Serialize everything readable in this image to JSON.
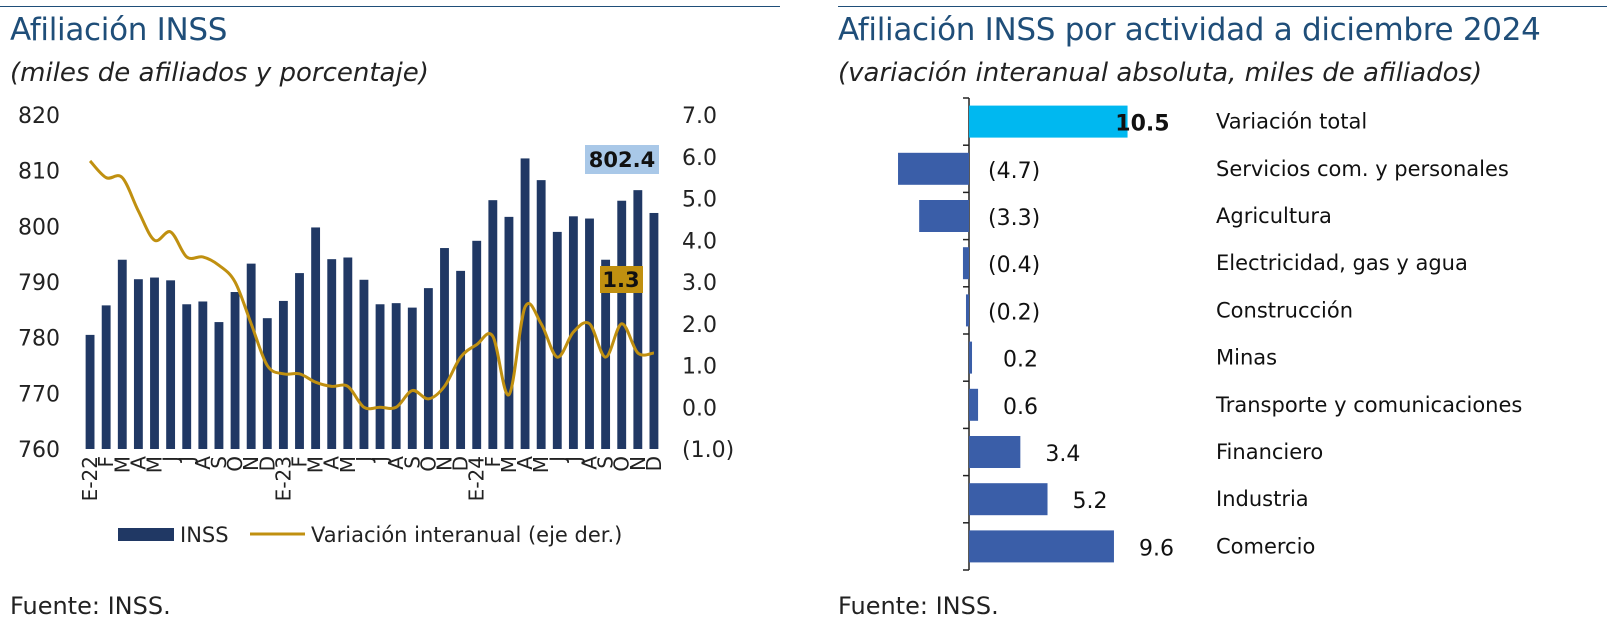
{
  "left": {
    "title": "Afiliación INSS",
    "subtitle": "(miles de afiliados y porcentaje)",
    "source": "Fuente: INSS.",
    "colors": {
      "bars": "#203864",
      "line": "#c09010",
      "bar_label_bg": "#a9c8e8",
      "line_label_bg": "#c09010"
    },
    "chart_data": {
      "type": "bar",
      "categories": [
        "E-22",
        "F",
        "M",
        "A",
        "M",
        "J",
        "J",
        "A",
        "S",
        "O",
        "N",
        "D",
        "E-23",
        "F",
        "M",
        "A",
        "M",
        "J",
        "J",
        "A",
        "S",
        "O",
        "N",
        "D",
        "E-24",
        "F",
        "M",
        "A",
        "M",
        "J",
        "J",
        "A",
        "S",
        "O",
        "N",
        "D"
      ],
      "series": [
        {
          "name": "INSS",
          "axis": "left",
          "values": [
            780.5,
            785.8,
            794.0,
            790.5,
            790.8,
            790.3,
            786.0,
            786.5,
            782.8,
            788.2,
            793.3,
            783.5,
            786.6,
            791.6,
            799.8,
            794.1,
            794.4,
            790.4,
            786.0,
            786.2,
            785.4,
            788.9,
            796.1,
            792.0,
            797.4,
            804.7,
            801.7,
            812.2,
            808.3,
            799.0,
            801.8,
            801.4,
            794.0,
            804.6,
            806.5,
            802.4
          ]
        },
        {
          "name": "Variación interanual (eje der.)",
          "axis": "right",
          "type": "line",
          "values": [
            5.9,
            5.5,
            5.5,
            4.7,
            4.0,
            4.2,
            3.6,
            3.6,
            3.4,
            3.0,
            2.0,
            1.0,
            0.8,
            0.8,
            0.6,
            0.5,
            0.5,
            0.0,
            0.0,
            0.0,
            0.4,
            0.2,
            0.5,
            1.2,
            1.5,
            1.7,
            0.3,
            2.4,
            2.0,
            1.2,
            1.8,
            2.0,
            1.2,
            2.0,
            1.3,
            1.3
          ]
        }
      ],
      "y_left": {
        "ylim": [
          760,
          820
        ],
        "ticks": [
          "820",
          "810",
          "800",
          "790",
          "780",
          "770",
          "760"
        ]
      },
      "y_right": {
        "ylim": [
          -1.0,
          7.0
        ],
        "ticks": [
          "7.0",
          "6.0",
          "5.0",
          "4.0",
          "3.0",
          "2.0",
          "1.0",
          "0.0",
          "(1.0)"
        ]
      },
      "annotations": {
        "last_bar": "802.4",
        "last_line": "1.3"
      },
      "legend_position": "bottom"
    }
  },
  "right": {
    "title": "Afiliación INSS por actividad a diciembre 2024",
    "subtitle": "(variación interanual absoluta, miles de afiliados)",
    "source": "Fuente: INSS.",
    "colors": {
      "total": "#00b8f0",
      "bars": "#3a5ea8"
    },
    "chart_data": {
      "type": "bar",
      "orientation": "horizontal",
      "items": [
        {
          "name": "Variación total",
          "value": 10.5,
          "label": "10.5",
          "highlight": true
        },
        {
          "name": "Servicios com. y personales",
          "value": -4.7,
          "label": "(4.7)"
        },
        {
          "name": "Agricultura",
          "value": -3.3,
          "label": "(3.3)"
        },
        {
          "name": "Electricidad, gas y agua",
          "value": -0.4,
          "label": "(0.4)"
        },
        {
          "name": "Construcción",
          "value": -0.2,
          "label": "(0.2)"
        },
        {
          "name": "Minas",
          "value": 0.2,
          "label": "0.2"
        },
        {
          "name": "Transporte y comunicaciones",
          "value": 0.6,
          "label": "0.6"
        },
        {
          "name": "Financiero",
          "value": 3.4,
          "label": "3.4"
        },
        {
          "name": "Industria",
          "value": 5.2,
          "label": "5.2"
        },
        {
          "name": "Comercio",
          "value": 9.6,
          "label": "9.6"
        }
      ]
    }
  }
}
